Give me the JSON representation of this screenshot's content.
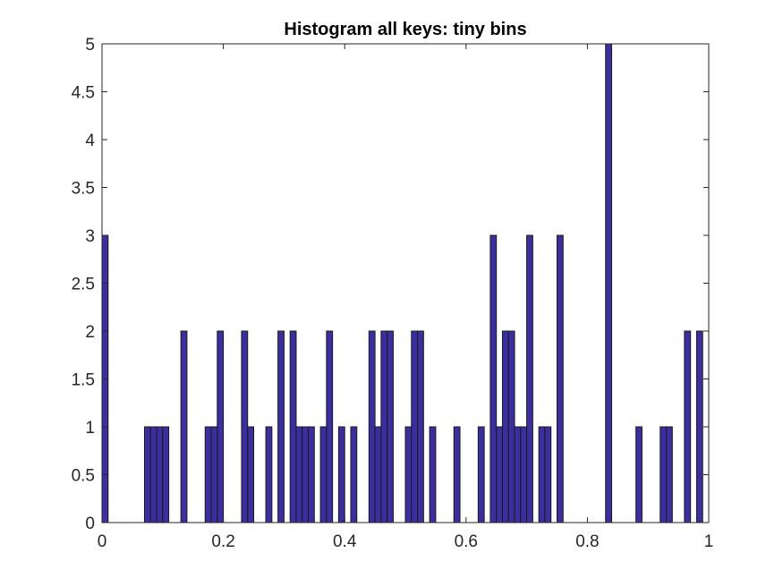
{
  "chart_data": {
    "type": "bar",
    "title": "Histogram all keys: tiny bins",
    "xlabel": "",
    "ylabel": "",
    "xlim": [
      0,
      1
    ],
    "ylim": [
      0,
      5
    ],
    "grid": false,
    "bar_color": "#3b2e9e",
    "bin_width": 0.01,
    "x_ticks": [
      0,
      0.2,
      0.4,
      0.6,
      0.8,
      1
    ],
    "x_tick_labels": [
      "0",
      "0.2",
      "0.4",
      "0.6",
      "0.8",
      "1"
    ],
    "y_ticks": [
      0,
      0.5,
      1,
      1.5,
      2,
      2.5,
      3,
      3.5,
      4,
      4.5,
      5
    ],
    "y_tick_labels": [
      "0",
      "0.5",
      "1",
      "1.5",
      "2",
      "2.5",
      "3",
      "3.5",
      "4",
      "4.5",
      "5"
    ],
    "bin_counts": [
      3,
      0,
      0,
      0,
      0,
      0,
      0,
      1,
      1,
      1,
      1,
      0,
      0,
      2,
      0,
      0,
      0,
      1,
      1,
      2,
      0,
      0,
      0,
      2,
      1,
      0,
      0,
      1,
      0,
      2,
      0,
      2,
      1,
      1,
      1,
      0,
      1,
      2,
      0,
      1,
      0,
      1,
      0,
      0,
      2,
      1,
      2,
      2,
      0,
      0,
      1,
      2,
      2,
      0,
      1,
      0,
      0,
      0,
      1,
      0,
      0,
      0,
      1,
      0,
      3,
      1,
      2,
      2,
      1,
      1,
      3,
      0,
      1,
      1,
      0,
      3,
      0,
      0,
      0,
      0,
      0,
      0,
      0,
      5,
      0,
      0,
      0,
      0,
      1,
      0,
      0,
      0,
      1,
      1,
      0,
      0,
      2,
      0,
      2,
      0
    ]
  }
}
